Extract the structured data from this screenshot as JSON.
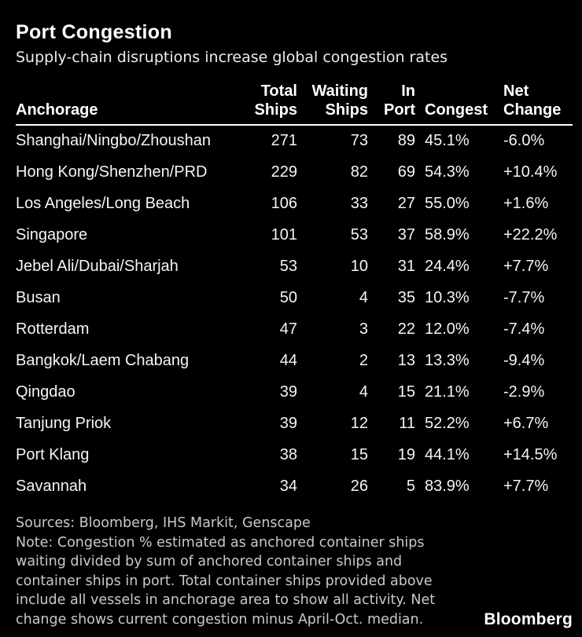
{
  "chart_data": {
    "type": "table",
    "title": "Port Congestion",
    "subtitle": "Supply-chain disruptions increase global congestion rates",
    "columns": [
      {
        "key": "anchorage",
        "line1": "",
        "line2": "Anchorage",
        "align": "left"
      },
      {
        "key": "total",
        "line1": "Total",
        "line2": "Ships",
        "align": "right"
      },
      {
        "key": "waiting",
        "line1": "Waiting",
        "line2": "Ships",
        "align": "right"
      },
      {
        "key": "in_port",
        "line1": "In",
        "line2": "Port",
        "align": "right"
      },
      {
        "key": "congest",
        "line1": "",
        "line2": "Congest",
        "align": "left"
      },
      {
        "key": "net_change",
        "line1": "Net",
        "line2": "Change",
        "align": "left"
      }
    ],
    "rows": [
      {
        "anchorage": "Shanghai/Ningbo/Zhoushan",
        "total": "271",
        "waiting": "73",
        "in_port": "89",
        "congest": "45.1%",
        "net_change": "-6.0%"
      },
      {
        "anchorage": "Hong Kong/Shenzhen/PRD",
        "total": "229",
        "waiting": "82",
        "in_port": "69",
        "congest": "54.3%",
        "net_change": "+10.4%"
      },
      {
        "anchorage": "Los Angeles/Long Beach",
        "total": "106",
        "waiting": "33",
        "in_port": "27",
        "congest": "55.0%",
        "net_change": "+1.6%"
      },
      {
        "anchorage": "Singapore",
        "total": "101",
        "waiting": "53",
        "in_port": "37",
        "congest": "58.9%",
        "net_change": "+22.2%"
      },
      {
        "anchorage": "Jebel Ali/Dubai/Sharjah",
        "total": "53",
        "waiting": "10",
        "in_port": "31",
        "congest": "24.4%",
        "net_change": "+7.7%"
      },
      {
        "anchorage": "Busan",
        "total": "50",
        "waiting": "4",
        "in_port": "35",
        "congest": "10.3%",
        "net_change": "-7.7%"
      },
      {
        "anchorage": "Rotterdam",
        "total": "47",
        "waiting": "3",
        "in_port": "22",
        "congest": "12.0%",
        "net_change": "-7.4%"
      },
      {
        "anchorage": "Bangkok/Laem Chabang",
        "total": "44",
        "waiting": "2",
        "in_port": "13",
        "congest": "13.3%",
        "net_change": "-9.4%"
      },
      {
        "anchorage": "Qingdao",
        "total": "39",
        "waiting": "4",
        "in_port": "15",
        "congest": "21.1%",
        "net_change": "-2.9%"
      },
      {
        "anchorage": "Tanjung Priok",
        "total": "39",
        "waiting": "12",
        "in_port": "11",
        "congest": "52.2%",
        "net_change": "+6.7%"
      },
      {
        "anchorage": "Port Klang",
        "total": "38",
        "waiting": "15",
        "in_port": "19",
        "congest": "44.1%",
        "net_change": "+14.5%"
      },
      {
        "anchorage": "Savannah",
        "total": "34",
        "waiting": "26",
        "in_port": "5",
        "congest": "83.9%",
        "net_change": "+7.7%"
      }
    ],
    "layout_hints": {
      "grid": "off",
      "header_rule": "white 2.5px",
      "numeric_columns_align": "right",
      "percent_columns_align": "left"
    }
  },
  "footer": {
    "lines": [
      "Sources: Bloomberg, IHS Markit, Genscape",
      "Note: Congestion % estimated as anchored container ships",
      "waiting divided by sum of anchored container ships and",
      "container ships in port. Total container ships provided above",
      "include all vessels in anchorage area to show all activity. Net",
      "change shows current congestion minus April-Oct. median."
    ],
    "logo": "Bloomberg"
  },
  "colors": {
    "background": "#000000",
    "text_primary": "#ffffff",
    "text_body": "#f5f5f5",
    "text_footer": "#c9c9c9",
    "header_rule": "#ffffff"
  }
}
